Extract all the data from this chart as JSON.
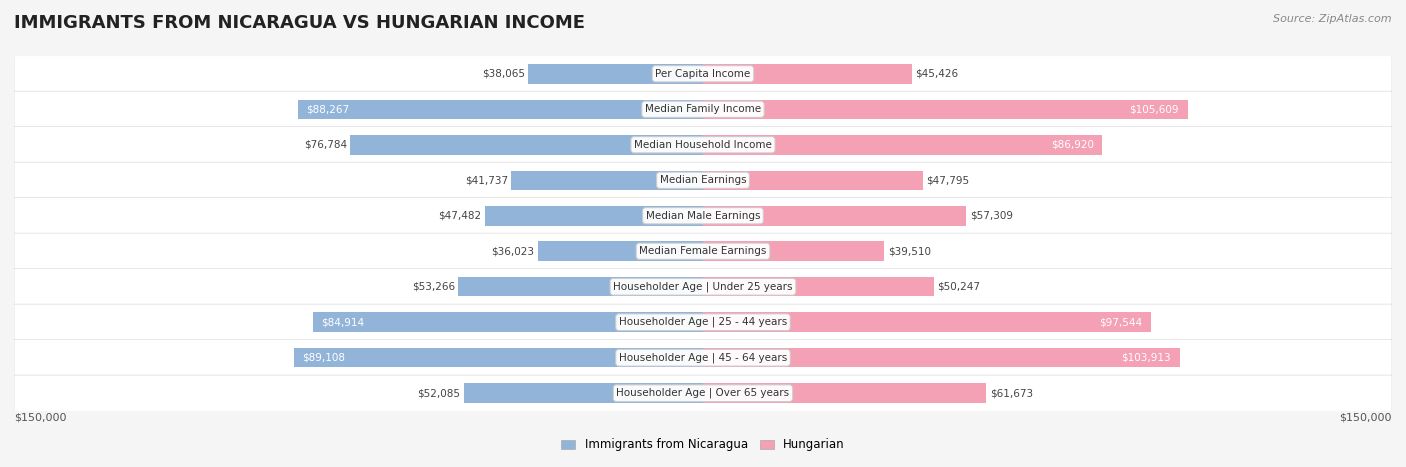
{
  "title": "IMMIGRANTS FROM NICARAGUA VS HUNGARIAN INCOME",
  "source": "Source: ZipAtlas.com",
  "categories": [
    "Per Capita Income",
    "Median Family Income",
    "Median Household Income",
    "Median Earnings",
    "Median Male Earnings",
    "Median Female Earnings",
    "Householder Age | Under 25 years",
    "Householder Age | 25 - 44 years",
    "Householder Age | 45 - 64 years",
    "Householder Age | Over 65 years"
  ],
  "nicaragua_values": [
    38065,
    88267,
    76784,
    41737,
    47482,
    36023,
    53266,
    84914,
    89108,
    52085
  ],
  "hungarian_values": [
    45426,
    105609,
    86920,
    47795,
    57309,
    39510,
    50247,
    97544,
    103913,
    61673
  ],
  "nicaragua_labels": [
    "$38,065",
    "$88,267",
    "$76,784",
    "$41,737",
    "$47,482",
    "$36,023",
    "$53,266",
    "$84,914",
    "$89,108",
    "$52,085"
  ],
  "hungarian_labels": [
    "$45,426",
    "$105,609",
    "$86,920",
    "$47,795",
    "$57,309",
    "$39,510",
    "$50,247",
    "$97,544",
    "$103,913",
    "$61,673"
  ],
  "nicaragua_color": "#92b4d9",
  "hungarian_color": "#f4a0b5",
  "nicaragua_label_color_dark": "#555555",
  "hungarian_label_color_dark": "#555555",
  "white_label_threshold": 80000,
  "max_value": 150000,
  "bar_height": 0.55,
  "bg_color": "#f5f5f5",
  "row_bg_color": "#ffffff",
  "row_alt_bg_color": "#f5f5f5",
  "legend_nicaragua": "Immigrants from Nicaragua",
  "legend_hungarian": "Hungarian",
  "xlabel_left": "$150,000",
  "xlabel_right": "$150,000"
}
